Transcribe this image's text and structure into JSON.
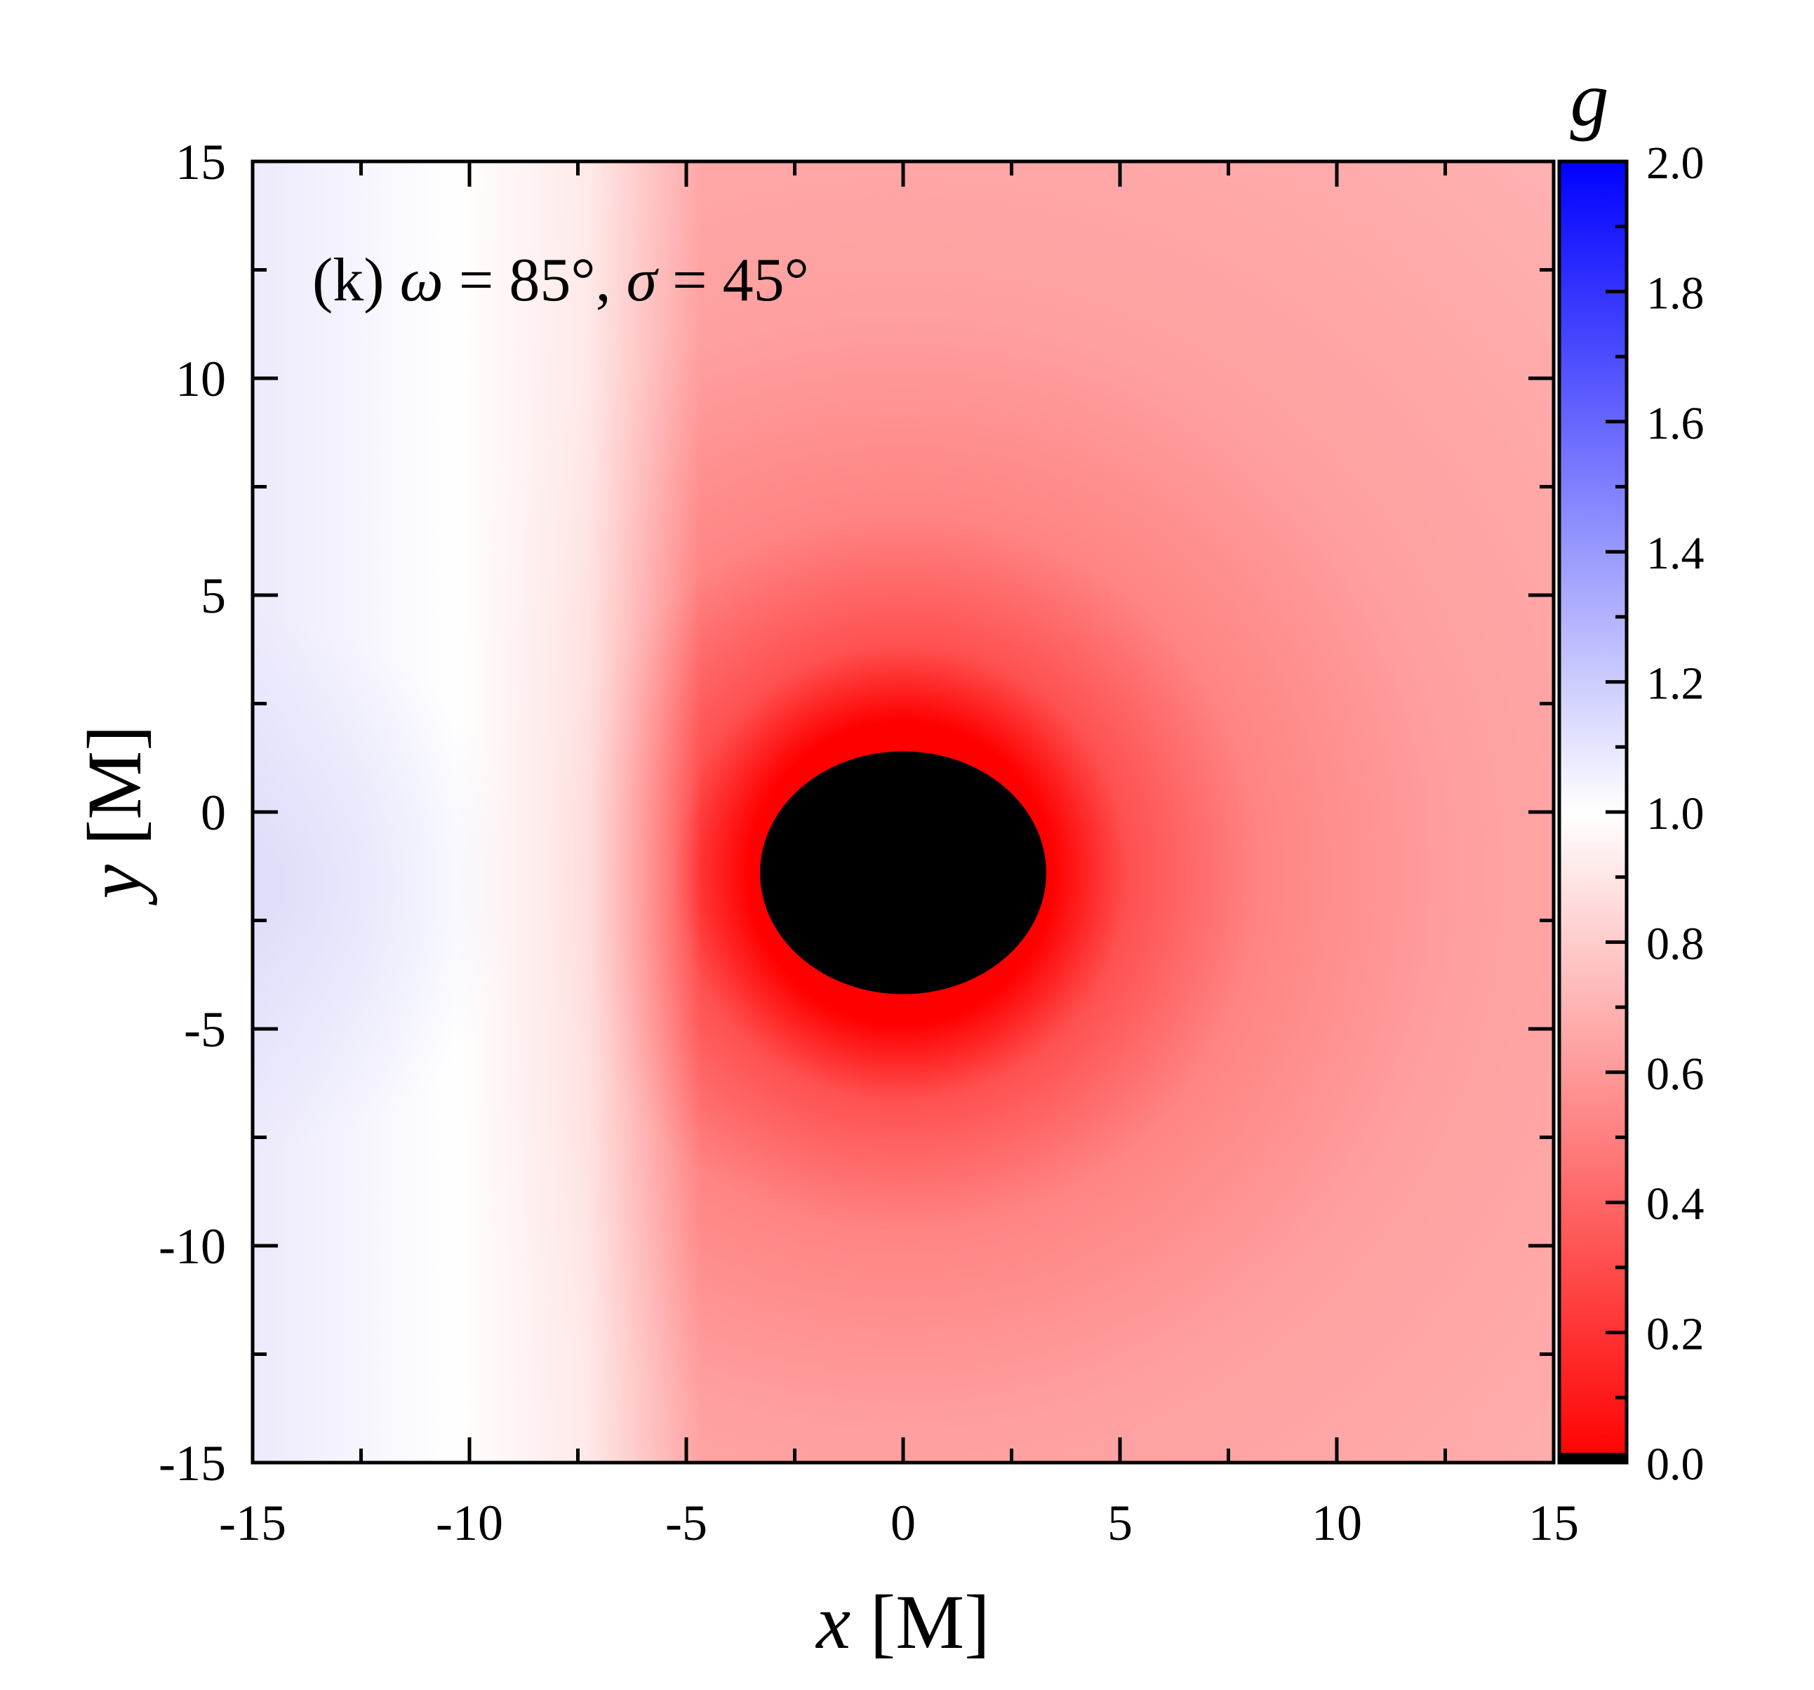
{
  "chart_data": {
    "type": "heatmap",
    "annotation": "(k) ω = 85°, σ = 45°",
    "annotation_parts": {
      "panel": "(k) ",
      "omega_symbol": "ω",
      "omega_value": " = 85°, ",
      "sigma_symbol": "σ",
      "sigma_value": " = 45°"
    },
    "xlabel": "x [M]",
    "xlabel_parts": {
      "symbol": "x",
      "unit": " [M]"
    },
    "ylabel": "y [M]",
    "ylabel_parts": {
      "symbol": "y",
      "unit": " [M]"
    },
    "xlim": [
      -15,
      15
    ],
    "ylim": [
      -15,
      15
    ],
    "x_ticks": [
      "-15",
      "-10",
      "-5",
      "0",
      "5",
      "10",
      "15"
    ],
    "y_ticks": [
      "-15",
      "-10",
      "-5",
      "0",
      "5",
      "10",
      "15"
    ],
    "colorbar": {
      "label": "g",
      "range": [
        0.0,
        2.0
      ],
      "ticks": [
        "0.0",
        "0.2",
        "0.4",
        "0.6",
        "0.8",
        "1.0",
        "1.2",
        "1.4",
        "1.6",
        "1.8",
        "2.0"
      ],
      "color_low": "#ff0000",
      "color_mid": "#ffffff",
      "color_high": "#0000ff"
    },
    "shadow": {
      "center": [
        0.0,
        -1.4
      ],
      "x_extent": [
        -3.3,
        3.3
      ],
      "y_extent": [
        -4.2,
        1.4
      ],
      "color": "#000000"
    },
    "redshift_field_samples": [
      {
        "x": -15,
        "y": -1.4,
        "g": 1.12
      },
      {
        "x": -15,
        "y": 14,
        "g": 1.0
      },
      {
        "x": -9,
        "y": -1.4,
        "g": 1.0
      },
      {
        "x": -6,
        "y": -1.4,
        "g": 0.85
      },
      {
        "x": -3.5,
        "y": -1.4,
        "g": 0.05
      },
      {
        "x": 3.5,
        "y": -1.4,
        "g": 0.05
      },
      {
        "x": 5,
        "y": -1.4,
        "g": 0.45
      },
      {
        "x": 10,
        "y": -1.4,
        "g": 0.6
      },
      {
        "x": 15,
        "y": -1.4,
        "g": 0.66
      },
      {
        "x": 0,
        "y": 4,
        "g": 0.45
      },
      {
        "x": 0,
        "y": 15,
        "g": 0.72
      },
      {
        "x": 0,
        "y": -8,
        "g": 0.45
      },
      {
        "x": 0,
        "y": -15,
        "g": 0.68
      }
    ]
  }
}
